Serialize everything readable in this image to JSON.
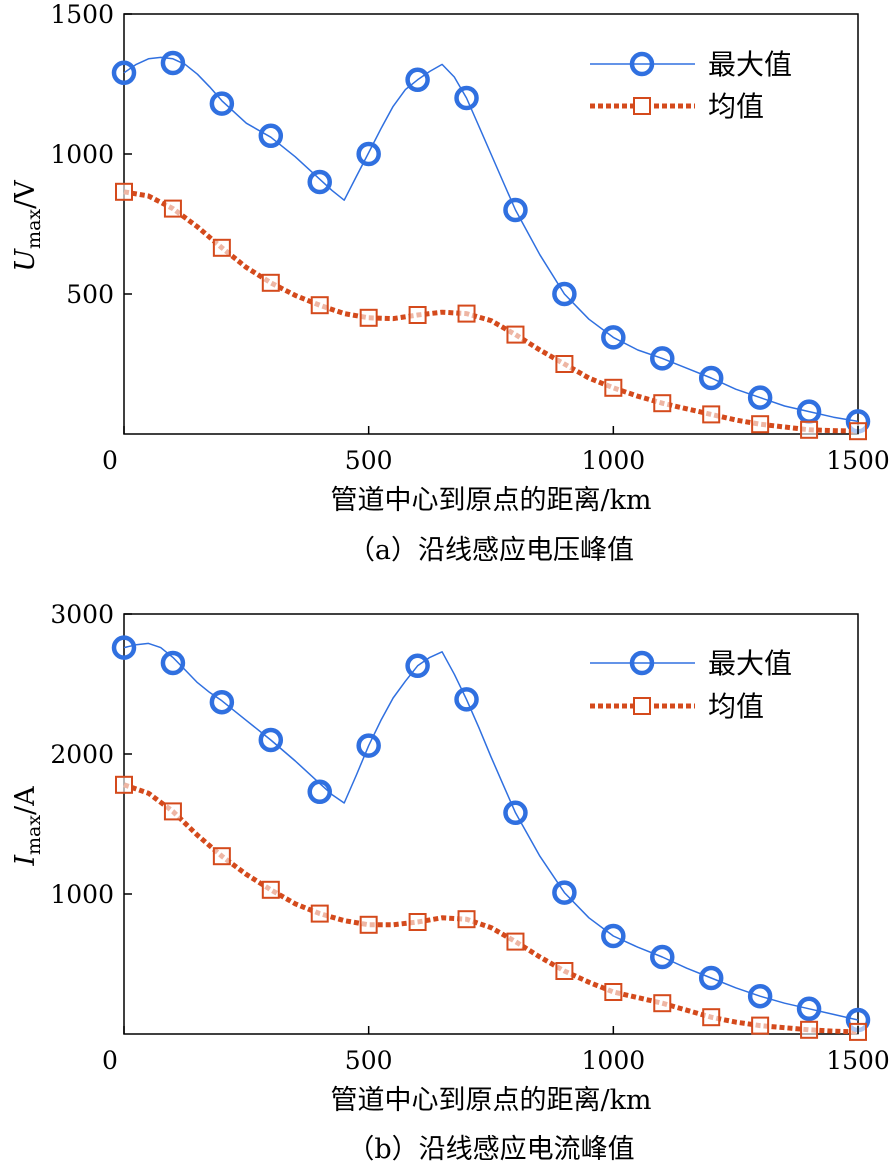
{
  "colors": {
    "max_series": "#3070e0",
    "max_marker": "#3070e0",
    "mean_series": "#d44a1c",
    "axis": "#000000"
  },
  "chart_data": [
    {
      "type": "line",
      "caption": "（a）沿线感应电压峰值",
      "xlabel": "管道中心到原点的距离/km",
      "ylabel_main": "U",
      "ylabel_sub": "max",
      "ylabel_unit": "/V",
      "xlim": [
        0,
        1500
      ],
      "ylim": [
        0,
        1500
      ],
      "xticks": [
        0,
        500,
        1000,
        1500
      ],
      "yticks": [
        500,
        1000,
        1500
      ],
      "legend_position": "top-right",
      "series": [
        {
          "name": "最大值",
          "style": "solid-line-circle",
          "x": [
            0,
            100,
            200,
            300,
            400,
            500,
            600,
            700,
            800,
            900,
            1000,
            1100,
            1200,
            1300,
            1400,
            1500
          ],
          "y": [
            1290,
            1325,
            1180,
            1065,
            900,
            1000,
            1265,
            1200,
            800,
            500,
            345,
            270,
            200,
            130,
            80,
            45
          ],
          "curve_x": [
            0,
            25,
            50,
            75,
            100,
            125,
            150,
            175,
            200,
            250,
            300,
            350,
            400,
            425,
            450,
            475,
            500,
            525,
            550,
            575,
            600,
            625,
            650,
            675,
            700,
            725,
            750,
            775,
            800,
            850,
            900,
            950,
            1000,
            1050,
            1100,
            1150,
            1200,
            1250,
            1300,
            1350,
            1400,
            1450,
            1500
          ],
          "curve_y": [
            1290,
            1320,
            1340,
            1345,
            1340,
            1320,
            1285,
            1240,
            1190,
            1110,
            1060,
            990,
            910,
            870,
            835,
            920,
            1005,
            1090,
            1170,
            1230,
            1265,
            1295,
            1320,
            1275,
            1200,
            1100,
            1000,
            900,
            800,
            640,
            500,
            410,
            345,
            300,
            270,
            235,
            200,
            160,
            130,
            100,
            80,
            60,
            45
          ]
        },
        {
          "name": "均值",
          "style": "dotted-line-square",
          "x": [
            0,
            100,
            200,
            300,
            400,
            500,
            600,
            700,
            800,
            900,
            1000,
            1100,
            1200,
            1300,
            1400,
            1500
          ],
          "y": [
            865,
            805,
            665,
            540,
            460,
            415,
            425,
            430,
            355,
            250,
            165,
            110,
            70,
            35,
            15,
            10
          ],
          "curve_x": [
            0,
            50,
            100,
            150,
            200,
            250,
            300,
            350,
            400,
            450,
            500,
            550,
            600,
            650,
            700,
            750,
            800,
            850,
            900,
            950,
            1000,
            1050,
            1100,
            1150,
            1200,
            1250,
            1300,
            1350,
            1400,
            1450,
            1500
          ],
          "curve_y": [
            865,
            850,
            805,
            740,
            665,
            595,
            540,
            495,
            460,
            430,
            415,
            412,
            425,
            435,
            430,
            405,
            355,
            300,
            250,
            200,
            165,
            135,
            110,
            90,
            70,
            50,
            35,
            25,
            15,
            12,
            10
          ]
        }
      ]
    },
    {
      "type": "line",
      "caption": "（b）沿线感应电流峰值",
      "xlabel": "管道中心到原点的距离/km",
      "ylabel_main": "I",
      "ylabel_sub": "max",
      "ylabel_unit": "/A",
      "xlim": [
        0,
        1500
      ],
      "ylim": [
        0,
        3000
      ],
      "xticks": [
        0,
        500,
        1000,
        1500
      ],
      "yticks": [
        1000,
        2000,
        3000
      ],
      "legend_position": "top-right",
      "series": [
        {
          "name": "最大值",
          "style": "solid-line-circle",
          "x": [
            0,
            100,
            200,
            300,
            400,
            500,
            600,
            700,
            800,
            900,
            1000,
            1100,
            1200,
            1300,
            1400,
            1500
          ],
          "y": [
            2760,
            2650,
            2370,
            2100,
            1730,
            2060,
            2630,
            2390,
            1580,
            1010,
            700,
            550,
            400,
            270,
            180,
            100
          ],
          "curve_x": [
            0,
            25,
            50,
            75,
            100,
            125,
            150,
            175,
            200,
            250,
            300,
            350,
            400,
            425,
            450,
            475,
            500,
            525,
            550,
            575,
            600,
            625,
            650,
            675,
            700,
            725,
            750,
            775,
            800,
            850,
            900,
            950,
            1000,
            1050,
            1100,
            1150,
            1200,
            1250,
            1300,
            1350,
            1400,
            1450,
            1500
          ],
          "curve_y": [
            2760,
            2780,
            2790,
            2760,
            2690,
            2600,
            2510,
            2440,
            2380,
            2240,
            2100,
            1950,
            1790,
            1710,
            1650,
            1850,
            2060,
            2240,
            2400,
            2520,
            2630,
            2690,
            2730,
            2570,
            2390,
            2190,
            1980,
            1780,
            1580,
            1270,
            1010,
            830,
            700,
            620,
            550,
            470,
            400,
            330,
            270,
            220,
            180,
            140,
            100
          ]
        },
        {
          "name": "均值",
          "style": "dotted-line-square",
          "x": [
            0,
            100,
            200,
            300,
            400,
            500,
            600,
            700,
            800,
            900,
            1000,
            1100,
            1200,
            1300,
            1400,
            1500
          ],
          "y": [
            1780,
            1590,
            1270,
            1030,
            860,
            780,
            800,
            820,
            660,
            450,
            300,
            220,
            120,
            60,
            30,
            15
          ],
          "curve_x": [
            0,
            50,
            100,
            150,
            200,
            250,
            300,
            350,
            400,
            450,
            500,
            550,
            600,
            650,
            700,
            750,
            800,
            850,
            900,
            950,
            1000,
            1050,
            1100,
            1150,
            1200,
            1250,
            1300,
            1350,
            1400,
            1450,
            1500
          ],
          "curve_y": [
            1780,
            1720,
            1590,
            1420,
            1270,
            1140,
            1030,
            930,
            860,
            810,
            780,
            780,
            800,
            830,
            820,
            760,
            660,
            550,
            450,
            370,
            300,
            260,
            220,
            170,
            120,
            85,
            60,
            45,
            30,
            20,
            15
          ]
        }
      ]
    }
  ]
}
